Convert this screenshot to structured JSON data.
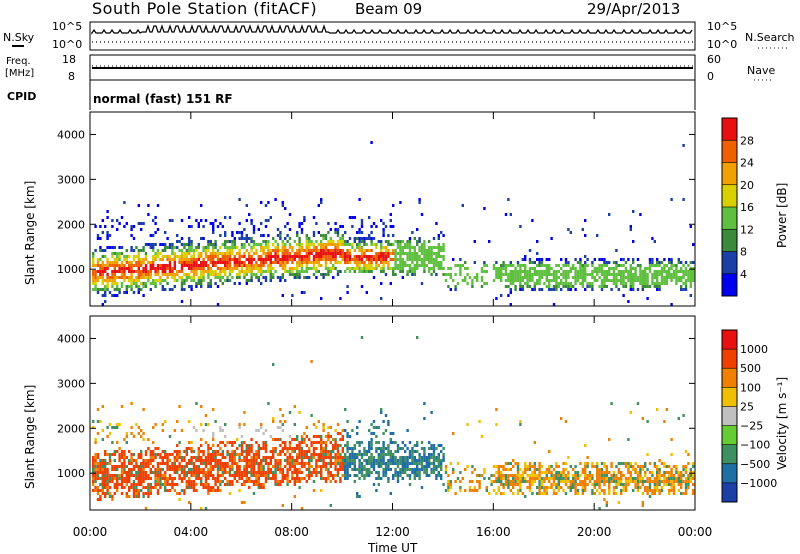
{
  "header": {
    "station": "South Pole Station (fitACF)",
    "beam": "Beam 09",
    "date": "29/Apr/2013"
  },
  "panels": {
    "nsky": {
      "left_label": "N.Sky",
      "left_ticks": [
        "10^5",
        "10^0"
      ],
      "right_label": "N.Search",
      "right_ticks": [
        "10^5",
        "10^0"
      ]
    },
    "freq": {
      "left_label_1": "Freq.",
      "left_label_2": "[MHz]",
      "left_ticks": [
        "18",
        "8"
      ],
      "right_label": "Nave",
      "right_ticks": [
        "60",
        "0"
      ]
    },
    "cpid": {
      "left_label": "CPID",
      "mode": "normal (fast) 151 RF"
    }
  },
  "axes": {
    "y_ticks": [
      "4000",
      "3000",
      "2000",
      "1000"
    ],
    "x_ticks": [
      "00:00",
      "04:00",
      "08:00",
      "12:00",
      "16:00",
      "20:00",
      "00:00"
    ],
    "y_label": "Slant Range [km]",
    "x_label": "Time UT"
  },
  "colorbars": {
    "power": {
      "label": "Power [dB]",
      "ticks": [
        "28",
        "24",
        "20",
        "16",
        "12",
        "8",
        "4"
      ],
      "colors": [
        "#0000ee",
        "#1a3fa6",
        "#3a8a3a",
        "#5fbf3f",
        "#d8d000",
        "#f0a000",
        "#f06000",
        "#e81010"
      ]
    },
    "velocity": {
      "label": "Velocity [m s⁻¹]",
      "ticks": [
        "1000",
        "500",
        "100",
        "25",
        "−25",
        "−100",
        "−500",
        "−1000"
      ],
      "colors": [
        "#1a3fa6",
        "#1f6ea6",
        "#3f9060",
        "#66cc33",
        "#c0c0c0",
        "#f0c000",
        "#f08000",
        "#f04000",
        "#e81010"
      ]
    }
  },
  "chart_data": [
    {
      "type": "heatmap",
      "title": "Power",
      "xlabel": "Time UT",
      "ylabel": "Slant Range [km]",
      "xlim": [
        0,
        24
      ],
      "ylim": [
        180,
        4500
      ],
      "colorbar_label": "Power [dB]",
      "colorbar_ticks": [
        4,
        8,
        12,
        16,
        20,
        24,
        28
      ]
    },
    {
      "type": "heatmap",
      "title": "Velocity",
      "xlabel": "Time UT",
      "ylabel": "Slant Range [km]",
      "xlim": [
        0,
        24
      ],
      "ylim": [
        180,
        4500
      ],
      "colorbar_label": "Velocity [m s⁻¹]",
      "colorbar_ticks": [
        1000,
        500,
        100,
        25,
        -25,
        -100,
        -500,
        -1000
      ]
    }
  ]
}
